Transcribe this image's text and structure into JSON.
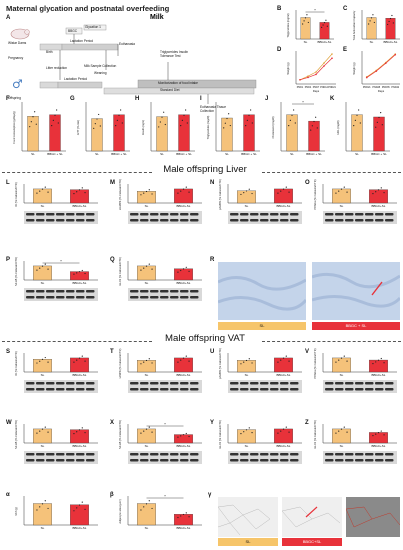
{
  "title": "Maternal glycation and postnatal overfeeding",
  "sections": {
    "liver": "Male offspring Liver",
    "vat": "Male offspring VAT"
  },
  "milk_label": "Milk",
  "panel_letters": {
    "A": "A",
    "B": "B",
    "C": "C",
    "D": "D",
    "E": "E",
    "F": "F",
    "G": "G",
    "H": "H",
    "I": "I",
    "J": "J",
    "K": "K",
    "L": "L",
    "M": "M",
    "N": "N",
    "O": "O",
    "P": "P",
    "Q": "Q",
    "R": "R",
    "S": "S",
    "T": "T",
    "U": "U",
    "V": "V",
    "W": "W",
    "X": "X",
    "Y": "Y",
    "Z": "Z",
    "alpha": "α",
    "beta": "β",
    "gamma": "γ"
  },
  "timeline": {
    "dams": "Wistar Dams",
    "pregnancy": "Pregnancy",
    "lactation1": "Lactation Period",
    "euthanasia1": "Euthanasia",
    "milk_sample": "Milk Sample Collection",
    "litter": "Litter reduction",
    "weaning": "Weaning",
    "offspring": "Offspring",
    "lactation2": "Lactation Period",
    "ttt": "Triglycerides Insulin Tolerance Test",
    "monitor": "Monitorization of food intake",
    "standard": "Standard Diet",
    "euthanasia2": "Euthanasia Tissue Collection",
    "bbgc": "BBGC",
    "birth": "Birth",
    "glycation": "Glycation 1"
  },
  "groups": [
    "SL",
    "BBGC+SL"
  ],
  "legend": {
    "sl": "SL",
    "bbgc": "SL+BBGC"
  },
  "x_labels": {
    "D": [
      "PND1",
      "PND4",
      "PND7",
      "PND14",
      "PND21"
    ],
    "E": [
      "PND21",
      "PND28",
      "PND35",
      "PND42"
    ],
    "days": "Days"
  },
  "histology": {
    "sl": "SL",
    "bbgc": "BBGC + SL",
    "sl_vat": "SL",
    "bbgc_vat": "BBGC+SL"
  },
  "colors": {
    "sl": "#f5c27a",
    "bbgc": "#e8323a",
    "liver_tissue": "#b7c9e2",
    "vat_tissue": "#e6e6e6",
    "arrow": "#e8323a"
  },
  "chart_data": [
    {
      "panel": "B",
      "type": "bar",
      "categories": [
        "SL",
        "BBGC+SL"
      ],
      "values": [
        2.2,
        1.7
      ],
      "ylabel": "Triglycerides (mg/ml)",
      "significance": "*"
    },
    {
      "panel": "C",
      "type": "bar",
      "categories": [
        "SL",
        "BBGC+SL"
      ],
      "values": [
        1.6,
        1.55
      ],
      "ylabel": "Total Antioxidant Capacity"
    },
    {
      "panel": "D",
      "type": "line",
      "x": [
        "PND1",
        "PND4",
        "PND7",
        "PND14",
        "PND21"
      ],
      "series": [
        {
          "name": "SL",
          "values": [
            7,
            13,
            20,
            35,
            50
          ]
        },
        {
          "name": "SL+BBGC",
          "values": [
            7,
            11,
            16,
            30,
            43
          ]
        }
      ],
      "ylabel": "Weight (g)",
      "xlabel": "Days"
    },
    {
      "panel": "E",
      "type": "line",
      "x": [
        "PND21",
        "PND28",
        "PND35",
        "PND42"
      ],
      "series": [
        {
          "name": "SL",
          "values": [
            50,
            95,
            150,
            210
          ]
        },
        {
          "name": "SL+BBGC",
          "values": [
            45,
            90,
            145,
            205
          ]
        }
      ],
      "ylabel": "Weight (g)",
      "xlabel": "Days"
    },
    {
      "panel": "F",
      "type": "bar",
      "categories": [
        "SL",
        "BBGC + SL"
      ],
      "values": [
        0.45,
        0.47
      ],
      "ylabel": "Food consumption (g/day/g)"
    },
    {
      "panel": "G",
      "type": "bar",
      "categories": [
        "SL",
        "BBGC + SL"
      ],
      "values": [
        2500,
        2800
      ],
      "ylabel": "AITT (%.min)"
    },
    {
      "panel": "H",
      "type": "bar",
      "categories": [
        "SL",
        "BBGC + SL"
      ],
      "values": [
        0.9,
        0.95
      ],
      "ylabel": "Insulin (ng/L)"
    },
    {
      "panel": "I",
      "type": "bar",
      "categories": [
        "SL",
        "BBGC + SL"
      ],
      "values": [
        100,
        110
      ],
      "ylabel": "Triglycerides (mg/dl)"
    },
    {
      "panel": "J",
      "type": "bar",
      "categories": [
        "SL",
        "BBGC + SL"
      ],
      "values": [
        85,
        70
      ],
      "ylabel": "Cholesterol (mg/dl)",
      "significance": "*"
    },
    {
      "panel": "K",
      "type": "bar",
      "categories": [
        "SL",
        "BBGC + SL"
      ],
      "values": [
        32,
        30
      ],
      "ylabel": "HDL (mg/dl)"
    },
    {
      "panel": "L",
      "type": "bar",
      "categories": [
        "SL",
        "BBGC+SL"
      ],
      "values": [
        100,
        95
      ],
      "ylabel": "IR (% Calnexin/CTR)"
    },
    {
      "panel": "M",
      "type": "bar",
      "categories": [
        "SL",
        "BBGC+SL"
      ],
      "values": [
        100,
        120
      ],
      "ylabel": "sIAMPK (% Calnexin/CTR)"
    },
    {
      "panel": "N",
      "type": "bar",
      "categories": [
        "SL",
        "BBGC+SL"
      ],
      "values": [
        100,
        115
      ],
      "ylabel": "pAMPK (% Calnexin/CTR)"
    },
    {
      "panel": "O",
      "type": "bar",
      "categories": [
        "SL",
        "BBGC+SL"
      ],
      "values": [
        100,
        95
      ],
      "ylabel": "PPARa (% Calnexin/CTR)"
    },
    {
      "panel": "P",
      "type": "bar",
      "categories": [
        "SL",
        "BBGC+SL"
      ],
      "values": [
        100,
        60
      ],
      "ylabel": "NF-kB (% Calnexin/CTR)",
      "significance": "*"
    },
    {
      "panel": "Q",
      "type": "bar",
      "categories": [
        "SL",
        "BBGC+SL"
      ],
      "values": [
        100,
        80
      ],
      "ylabel": "GLO1 (% Calnexin/CTR)"
    },
    {
      "panel": "S",
      "type": "bar",
      "categories": [
        "SL",
        "BBGC+SL"
      ],
      "values": [
        100,
        110
      ],
      "ylabel": "IR (% Calnexin/CTR)"
    },
    {
      "panel": "T",
      "type": "bar",
      "categories": [
        "SL",
        "BBGC+SL"
      ],
      "values": [
        100,
        120
      ],
      "ylabel": "tAMPK (% Calnexin/CTR)"
    },
    {
      "panel": "U",
      "type": "bar",
      "categories": [
        "SL",
        "BBGC+SL"
      ],
      "values": [
        50,
        60
      ],
      "ylabel": "pAMPK (% Calnexin/CTR)"
    },
    {
      "panel": "V",
      "type": "bar",
      "categories": [
        "SL",
        "BBGC+SL"
      ],
      "values": [
        100,
        85
      ],
      "ylabel": "PPARa (% Calnexin/CTR)"
    },
    {
      "panel": "W",
      "type": "bar",
      "categories": [
        "SL",
        "BBGC+SL"
      ],
      "values": [
        100,
        95
      ],
      "ylabel": "NF-kB (% Calnexin/CTR)"
    },
    {
      "panel": "X",
      "type": "bar",
      "categories": [
        "SL",
        "BBGC+SL"
      ],
      "values": [
        100,
        60
      ],
      "ylabel": "NF-kB (% Calnexin/CTR)",
      "significance": "*"
    },
    {
      "panel": "Y",
      "type": "bar",
      "categories": [
        "SL",
        "BBGC+SL"
      ],
      "values": [
        100,
        105
      ],
      "ylabel": "GLO1 (% Calnexin/CTR)"
    },
    {
      "panel": "Z",
      "type": "bar",
      "categories": [
        "SL",
        "BBGC+SL"
      ],
      "values": [
        100,
        75
      ],
      "ylabel": "GLO1 (% Calnexin/CTR)"
    },
    {
      "panel": "alpha",
      "type": "bar",
      "categories": [
        "SL",
        "BBGC+SL"
      ],
      "values": [
        0.9,
        0.85
      ],
      "ylabel": "VAT (g)"
    },
    {
      "panel": "beta",
      "type": "bar",
      "categories": [
        "SL",
        "BBGC+SL"
      ],
      "values": [
        1400,
        700
      ],
      "ylabel": "Adipocyte area (μm²)",
      "significance": "*"
    }
  ]
}
